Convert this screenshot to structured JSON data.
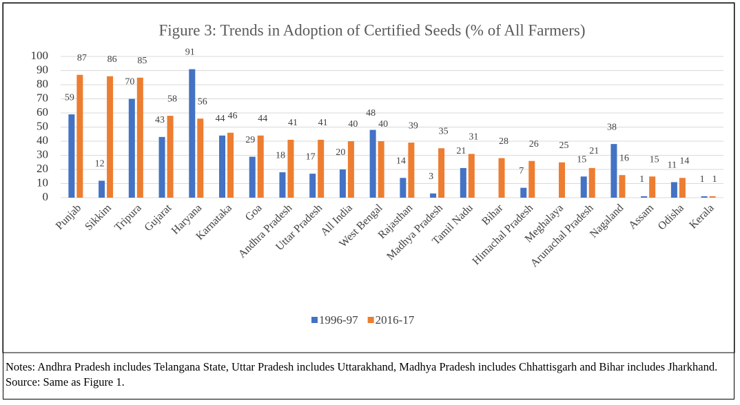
{
  "chart_data": {
    "type": "bar",
    "title": "Figure 3: Trends in Adoption of Certified Seeds (% of All Farmers)",
    "categories": [
      "Punjab",
      "Sikkim",
      "Tripura",
      "Gujarat",
      "Haryana",
      "Karnataka",
      "Goa",
      "Andhra Pradesh",
      "Uttar Pradesh",
      "All India",
      "West Bengal",
      "Rajasthan",
      "Madhya Pradesh",
      "Tamil Nadu",
      "Bihar",
      "Himachal Pradesh",
      "Meghalaya",
      "Arunachal Pradesh",
      "Nagaland",
      "Assam",
      "Odisha",
      "Kerala"
    ],
    "series": [
      {
        "name": "1996-97",
        "color": "#4472c4",
        "values": [
          59,
          12,
          70,
          43,
          91,
          44,
          29,
          18,
          17,
          20,
          48,
          14,
          3,
          21,
          null,
          7,
          null,
          15,
          38,
          1,
          11,
          1
        ]
      },
      {
        "name": "2016-17",
        "color": "#ed7d31",
        "values": [
          87,
          86,
          85,
          58,
          56,
          46,
          44,
          41,
          41,
          40,
          40,
          39,
          35,
          31,
          28,
          26,
          25,
          21,
          16,
          15,
          14,
          1
        ]
      }
    ],
    "ylim": [
      0,
      100
    ],
    "yticks": [
      0,
      10,
      20,
      30,
      40,
      50,
      60,
      70,
      80,
      90,
      100
    ],
    "grid": true,
    "legend": "bottom"
  },
  "notes": "Notes: Andhra Pradesh includes Telangana State, Uttar Pradesh includes Uttarakhand, Madhya Pradesh includes Chhattisgarh and Bihar includes Jharkhand.",
  "source": "Source: Same as Figure 1."
}
